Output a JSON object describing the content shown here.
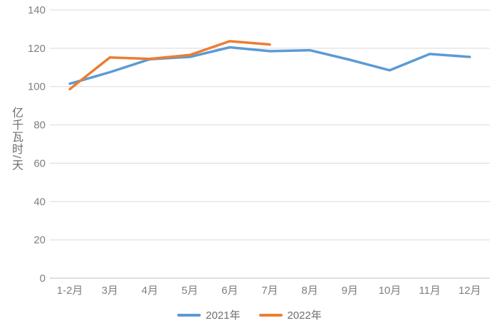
{
  "chart_data": {
    "type": "line",
    "title": "",
    "xlabel": "",
    "ylabel": "亿千瓦时/天",
    "categories": [
      "1-2月",
      "3月",
      "4月",
      "5月",
      "6月",
      "7月",
      "8月",
      "9月",
      "10月",
      "11月",
      "12月"
    ],
    "series": [
      {
        "name": "2021年",
        "color": "#5B9BD5",
        "values": [
          101.5,
          107.5,
          114.3,
          115.5,
          120.5,
          118.5,
          119,
          114,
          108.5,
          117,
          115.5
        ]
      },
      {
        "name": "2022年",
        "color": "#ED7D31",
        "values": [
          98.7,
          115.2,
          114.5,
          116.5,
          123.7,
          122,
          null,
          null,
          null,
          null,
          null
        ]
      }
    ],
    "ylim": [
      0,
      140
    ],
    "yticks": [
      0,
      20,
      40,
      60,
      80,
      100,
      120,
      140
    ],
    "grid": true,
    "legend_position": "bottom",
    "colors": {
      "gridline": "#D9D9D9",
      "baseline": "#BFBFBF",
      "tick_label": "#7F7F7F",
      "background": "#FFFFFF"
    }
  }
}
